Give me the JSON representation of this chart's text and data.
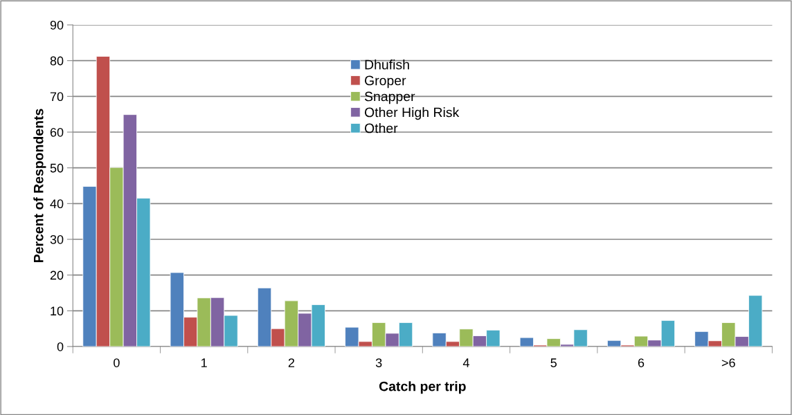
{
  "chart_data": {
    "type": "bar",
    "xlabel": "Catch per trip",
    "ylabel": "Percent of Respondents",
    "categories": [
      "0",
      "1",
      "2",
      "3",
      "4",
      "5",
      "6",
      ">6"
    ],
    "series": [
      {
        "name": "Dhufish",
        "color": "#4f81bd",
        "values": [
          44.8,
          20.7,
          16.4,
          5.4,
          3.8,
          2.5,
          1.7,
          4.2
        ]
      },
      {
        "name": "Groper",
        "color": "#c0504d",
        "values": [
          81.2,
          8.2,
          5.0,
          1.4,
          1.4,
          0.4,
          0.4,
          1.6
        ]
      },
      {
        "name": "Snapper",
        "color": "#9bbb59",
        "values": [
          50.1,
          13.6,
          12.8,
          6.7,
          4.9,
          2.2,
          2.9,
          6.7
        ]
      },
      {
        "name": "Other High Risk",
        "color": "#8064a2",
        "values": [
          64.9,
          13.7,
          9.3,
          3.7,
          3.0,
          0.6,
          1.8,
          2.8
        ]
      },
      {
        "name": "Other",
        "color": "#4bacc6",
        "values": [
          41.5,
          8.7,
          11.7,
          6.7,
          4.6,
          4.7,
          7.3,
          14.3
        ]
      }
    ],
    "ylim": [
      0,
      90
    ],
    "yticks": [
      0,
      10,
      20,
      30,
      40,
      50,
      60,
      70,
      80,
      90
    ],
    "grid": "y",
    "legend": "top"
  }
}
